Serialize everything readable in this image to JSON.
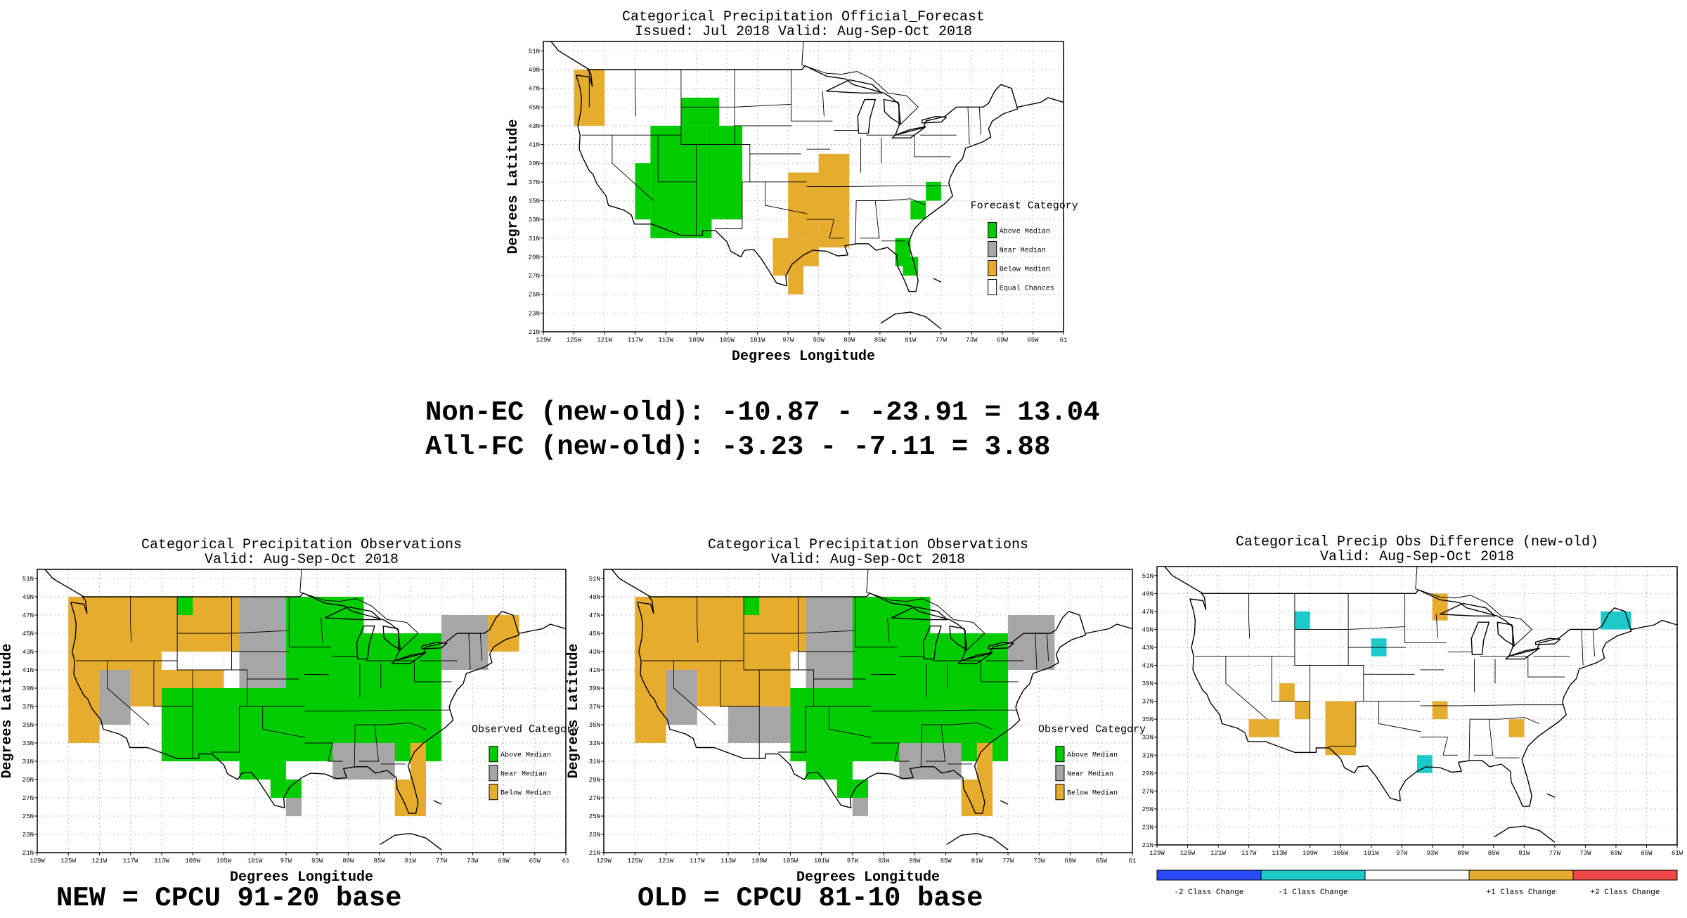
{
  "figure": {
    "stats": {
      "non_ec": "Non-EC (new-old): -10.87 - -23.91 = 13.04",
      "all_fc": "All-FC (new-old): -3.23 - -7.11 = 3.88"
    },
    "new_base": "NEW = CPCU 91-20 base",
    "old_base": "OLD = CPCU 81-10 base"
  },
  "colors": {
    "above": "#00cc00",
    "near": "#a6a6a6",
    "below": "#e6ac2e",
    "equal": "#ffffff",
    "minus2": "#2a4bff",
    "minus1": "#1ec9c9",
    "plus1": "#e6ac2e",
    "plus2": "#f04848"
  },
  "chart_data": [
    {
      "id": "forecast",
      "type": "heatmap",
      "title": "Categorical Precipitation Official_Forecast",
      "subtitle": "Issued: Jul 2018 Valid: Aug-Sep-Oct 2018",
      "xlabel": "Degrees Longitude",
      "ylabel": "Degrees Latitude",
      "xlim": [
        -129,
        -61
      ],
      "ylim": [
        21,
        52
      ],
      "x_ticks": [
        "129W",
        "125W",
        "121W",
        "117W",
        "113W",
        "109W",
        "105W",
        "101W",
        "97W",
        "93W",
        "89W",
        "85W",
        "81W",
        "77W",
        "73W",
        "69W",
        "65W",
        "61"
      ],
      "y_ticks": [
        "21N",
        "23N",
        "25N",
        "27N",
        "29N",
        "31N",
        "33N",
        "35N",
        "37N",
        "39N",
        "41N",
        "43N",
        "45N",
        "47N",
        "49N",
        "51N"
      ],
      "legend_title": "Forecast Category",
      "legend": [
        {
          "label": "Above Median",
          "color": "above"
        },
        {
          "label": "Near Median",
          "color": "near"
        },
        {
          "label": "Below Median",
          "color": "below"
        },
        {
          "label": "Equal Chances",
          "color": "equal"
        }
      ],
      "cells": [
        {
          "lon": [
            -125,
            -121
          ],
          "lat": [
            43,
            49
          ],
          "cat": "below"
        },
        {
          "lon": [
            -115,
            -107
          ],
          "lat": [
            31,
            43
          ],
          "cat": "above"
        },
        {
          "lon": [
            -111,
            -106
          ],
          "lat": [
            43,
            46
          ],
          "cat": "above"
        },
        {
          "lon": [
            -107,
            -103
          ],
          "lat": [
            33,
            43
          ],
          "cat": "above"
        },
        {
          "lon": [
            -117,
            -115
          ],
          "lat": [
            33,
            39
          ],
          "cat": "above"
        },
        {
          "lon": [
            -93,
            -89
          ],
          "lat": [
            30,
            40
          ],
          "cat": "below"
        },
        {
          "lon": [
            -97,
            -93
          ],
          "lat": [
            31,
            38
          ],
          "cat": "below"
        },
        {
          "lon": [
            -99,
            -95
          ],
          "lat": [
            27,
            31
          ],
          "cat": "below"
        },
        {
          "lon": [
            -97,
            -95
          ],
          "lat": [
            25,
            27
          ],
          "cat": "below"
        },
        {
          "lon": [
            -95,
            -93
          ],
          "lat": [
            28,
            31
          ],
          "cat": "below"
        },
        {
          "lon": [
            -79,
            -77
          ],
          "lat": [
            35,
            37
          ],
          "cat": "above"
        },
        {
          "lon": [
            -81,
            -79
          ],
          "lat": [
            33,
            35
          ],
          "cat": "above"
        },
        {
          "lon": [
            -83,
            -81
          ],
          "lat": [
            28,
            31
          ],
          "cat": "above"
        },
        {
          "lon": [
            -82,
            -80
          ],
          "lat": [
            27,
            29
          ],
          "cat": "above"
        }
      ]
    },
    {
      "id": "obs_new",
      "type": "heatmap",
      "title": "Categorical Precipitation Observations",
      "subtitle": "Valid: Aug-Sep-Oct 2018",
      "xlabel": "Degrees Longitude",
      "ylabel": "Degrees Latitude",
      "xlim": [
        -129,
        -61
      ],
      "ylim": [
        21,
        52
      ],
      "x_ticks": [
        "129W",
        "125W",
        "121W",
        "117W",
        "113W",
        "109W",
        "105W",
        "101W",
        "97W",
        "93W",
        "89W",
        "85W",
        "81W",
        "77W",
        "73W",
        "69W",
        "65W",
        "61"
      ],
      "y_ticks": [
        "21N",
        "23N",
        "25N",
        "27N",
        "29N",
        "31N",
        "33N",
        "35N",
        "37N",
        "39N",
        "41N",
        "43N",
        "45N",
        "47N",
        "49N",
        "51N"
      ],
      "legend_title": "Observed Category",
      "legend": [
        {
          "label": "Above Median",
          "color": "above"
        },
        {
          "label": "Near Median",
          "color": "near"
        },
        {
          "label": "Below Median",
          "color": "below"
        }
      ],
      "cells": [
        {
          "lon": [
            -125,
            -117
          ],
          "lat": [
            41,
            49
          ],
          "cat": "below"
        },
        {
          "lon": [
            -125,
            -121
          ],
          "lat": [
            33,
            41
          ],
          "cat": "below"
        },
        {
          "lon": [
            -121,
            -117
          ],
          "lat": [
            35,
            41
          ],
          "cat": "near"
        },
        {
          "lon": [
            -117,
            -103
          ],
          "lat": [
            43,
            49
          ],
          "cat": "below"
        },
        {
          "lon": [
            -111,
            -109
          ],
          "lat": [
            47,
            49
          ],
          "cat": "above"
        },
        {
          "lon": [
            -117,
            -113
          ],
          "lat": [
            37,
            43
          ],
          "cat": "below"
        },
        {
          "lon": [
            -113,
            -105
          ],
          "lat": [
            37,
            41
          ],
          "cat": "below"
        },
        {
          "lon": [
            -103,
            -97
          ],
          "lat": [
            39,
            49
          ],
          "cat": "near"
        },
        {
          "lon": [
            -97,
            -87
          ],
          "lat": [
            39,
            49
          ],
          "cat": "above"
        },
        {
          "lon": [
            -87,
            -77
          ],
          "lat": [
            39,
            45
          ],
          "cat": "above"
        },
        {
          "lon": [
            -77,
            -71
          ],
          "lat": [
            41,
            47
          ],
          "cat": "near"
        },
        {
          "lon": [
            -71,
            -67
          ],
          "lat": [
            43,
            47
          ],
          "cat": "below"
        },
        {
          "lon": [
            -113,
            -85
          ],
          "lat": [
            31,
            39
          ],
          "cat": "above"
        },
        {
          "lon": [
            -103,
            -97
          ],
          "lat": [
            29,
            31
          ],
          "cat": "above"
        },
        {
          "lon": [
            -99,
            -95
          ],
          "lat": [
            27,
            29
          ],
          "cat": "above"
        },
        {
          "lon": [
            -97,
            -95
          ],
          "lat": [
            25,
            27
          ],
          "cat": "near"
        },
        {
          "lon": [
            -85,
            -77
          ],
          "lat": [
            31,
            39
          ],
          "cat": "above"
        },
        {
          "lon": [
            -91,
            -83
          ],
          "lat": [
            29,
            33
          ],
          "cat": "near"
        },
        {
          "lon": [
            -83,
            -79
          ],
          "lat": [
            25,
            29
          ],
          "cat": "below"
        },
        {
          "lon": [
            -81,
            -79
          ],
          "lat": [
            29,
            33
          ],
          "cat": "below"
        }
      ]
    },
    {
      "id": "obs_old",
      "type": "heatmap",
      "title": "Categorical Precipitation Observations",
      "subtitle": "Valid: Aug-Sep-Oct 2018",
      "xlabel": "Degrees Longitude",
      "ylabel": "Degrees Latitude",
      "xlim": [
        -129,
        -61
      ],
      "ylim": [
        21,
        52
      ],
      "x_ticks": [
        "129W",
        "125W",
        "121W",
        "117W",
        "113W",
        "109W",
        "105W",
        "101W",
        "97W",
        "93W",
        "89W",
        "85W",
        "81W",
        "77W",
        "73W",
        "69W",
        "65W",
        "61"
      ],
      "y_ticks": [
        "21N",
        "23N",
        "25N",
        "27N",
        "29N",
        "31N",
        "33N",
        "35N",
        "37N",
        "39N",
        "41N",
        "43N",
        "45N",
        "47N",
        "49N",
        "51N"
      ],
      "legend_title": "Observed Category",
      "legend": [
        {
          "label": "Above Median",
          "color": "above"
        },
        {
          "label": "Near Median",
          "color": "near"
        },
        {
          "label": "Below Median",
          "color": "below"
        }
      ],
      "cells": [
        {
          "lon": [
            -125,
            -117
          ],
          "lat": [
            41,
            49
          ],
          "cat": "below"
        },
        {
          "lon": [
            -125,
            -121
          ],
          "lat": [
            33,
            41
          ],
          "cat": "below"
        },
        {
          "lon": [
            -121,
            -117
          ],
          "lat": [
            35,
            41
          ],
          "cat": "near"
        },
        {
          "lon": [
            -117,
            -103
          ],
          "lat": [
            43,
            49
          ],
          "cat": "below"
        },
        {
          "lon": [
            -111,
            -109
          ],
          "lat": [
            47,
            49
          ],
          "cat": "above"
        },
        {
          "lon": [
            -117,
            -105
          ],
          "lat": [
            37,
            43
          ],
          "cat": "below"
        },
        {
          "lon": [
            -113,
            -105
          ],
          "lat": [
            33,
            37
          ],
          "cat": "near"
        },
        {
          "lon": [
            -103,
            -97
          ],
          "lat": [
            39,
            49
          ],
          "cat": "near"
        },
        {
          "lon": [
            -97,
            -87
          ],
          "lat": [
            39,
            49
          ],
          "cat": "above"
        },
        {
          "lon": [
            -87,
            -77
          ],
          "lat": [
            39,
            45
          ],
          "cat": "above"
        },
        {
          "lon": [
            -77,
            -71
          ],
          "lat": [
            41,
            47
          ],
          "cat": "near"
        },
        {
          "lon": [
            -105,
            -85
          ],
          "lat": [
            31,
            39
          ],
          "cat": "above"
        },
        {
          "lon": [
            -103,
            -97
          ],
          "lat": [
            29,
            31
          ],
          "cat": "above"
        },
        {
          "lon": [
            -99,
            -95
          ],
          "lat": [
            27,
            29
          ],
          "cat": "above"
        },
        {
          "lon": [
            -97,
            -95
          ],
          "lat": [
            25,
            27
          ],
          "cat": "near"
        },
        {
          "lon": [
            -85,
            -77
          ],
          "lat": [
            31,
            39
          ],
          "cat": "above"
        },
        {
          "lon": [
            -91,
            -83
          ],
          "lat": [
            29,
            33
          ],
          "cat": "near"
        },
        {
          "lon": [
            -83,
            -79
          ],
          "lat": [
            25,
            29
          ],
          "cat": "below"
        },
        {
          "lon": [
            -81,
            -79
          ],
          "lat": [
            29,
            33
          ],
          "cat": "below"
        }
      ]
    },
    {
      "id": "diff",
      "type": "heatmap",
      "title": "Categorical Precip Obs Difference (new-old)",
      "subtitle": "Valid: Aug-Sep-Oct 2018",
      "xlim": [
        -129,
        -61
      ],
      "ylim": [
        21,
        52
      ],
      "x_ticks": [
        "129W",
        "125W",
        "121W",
        "117W",
        "113W",
        "109W",
        "105W",
        "101W",
        "97W",
        "93W",
        "89W",
        "85W",
        "81W",
        "77W",
        "73W",
        "69W",
        "65W",
        "61W"
      ],
      "y_ticks": [
        "21N",
        "23N",
        "25N",
        "27N",
        "29N",
        "31N",
        "33N",
        "35N",
        "37N",
        "39N",
        "41N",
        "43N",
        "45N",
        "47N",
        "49N",
        "51N"
      ],
      "colorbar": [
        {
          "label": "-2 Class Change",
          "color": "minus2"
        },
        {
          "label": "-1 Class Change",
          "color": "minus1"
        },
        {
          "label": "",
          "color": "equal"
        },
        {
          "label": "+1 Class Change",
          "color": "plus1"
        },
        {
          "label": "+2 Class Change",
          "color": "plus2"
        }
      ],
      "cells": [
        {
          "lon": [
            -111,
            -109
          ],
          "lat": [
            45,
            47
          ],
          "cat": "minus1"
        },
        {
          "lon": [
            -101,
            -99
          ],
          "lat": [
            42,
            44
          ],
          "cat": "minus1"
        },
        {
          "lon": [
            -93,
            -91
          ],
          "lat": [
            46,
            49
          ],
          "cat": "plus1"
        },
        {
          "lon": [
            -71,
            -67
          ],
          "lat": [
            45,
            47
          ],
          "cat": "minus1"
        },
        {
          "lon": [
            -113,
            -111
          ],
          "lat": [
            37,
            39
          ],
          "cat": "plus1"
        },
        {
          "lon": [
            -111,
            -109
          ],
          "lat": [
            35,
            37
          ],
          "cat": "plus1"
        },
        {
          "lon": [
            -107,
            -103
          ],
          "lat": [
            31,
            37
          ],
          "cat": "plus1"
        },
        {
          "lon": [
            -117,
            -113
          ],
          "lat": [
            33,
            35
          ],
          "cat": "plus1"
        },
        {
          "lon": [
            -93,
            -91
          ],
          "lat": [
            35,
            37
          ],
          "cat": "plus1"
        },
        {
          "lon": [
            -83,
            -81
          ],
          "lat": [
            33,
            35
          ],
          "cat": "plus1"
        },
        {
          "lon": [
            -95,
            -93
          ],
          "lat": [
            29,
            31
          ],
          "cat": "minus1"
        }
      ]
    }
  ]
}
